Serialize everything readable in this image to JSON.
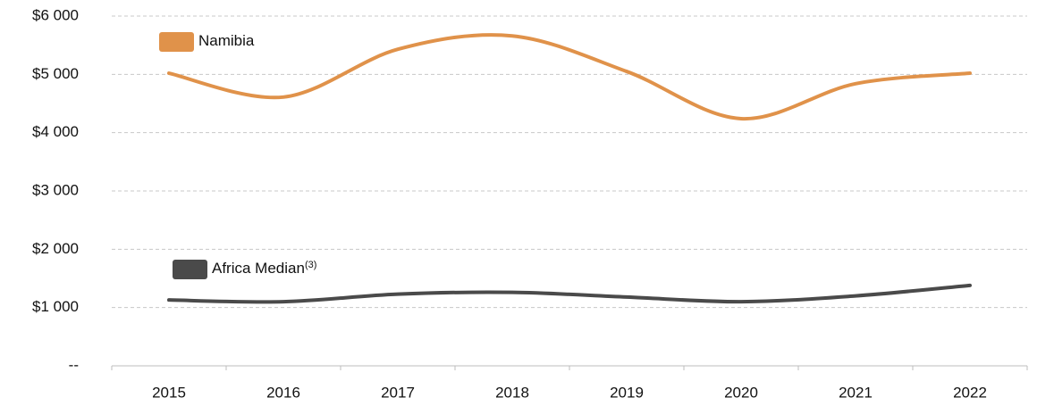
{
  "chart_data": {
    "type": "line",
    "categories": [
      "2015",
      "2016",
      "2017",
      "2018",
      "2019",
      "2020",
      "2021",
      "2022"
    ],
    "series": [
      {
        "name": "Namibia",
        "color": "#e0924a",
        "values": [
          5020,
          4610,
          5430,
          5660,
          5050,
          4240,
          4840,
          5020
        ]
      },
      {
        "name": "Africa Median",
        "name_note": "(3)",
        "color": "#4a4a4a",
        "values": [
          1130,
          1100,
          1230,
          1260,
          1180,
          1100,
          1200,
          1380
        ]
      }
    ],
    "ylim": [
      0,
      6000
    ],
    "yticks": [
      {
        "value": 0,
        "label": "--"
      },
      {
        "value": 1000,
        "label": "$1 000"
      },
      {
        "value": 2000,
        "label": "$2 000"
      },
      {
        "value": 3000,
        "label": "$3 000"
      },
      {
        "value": 4000,
        "label": "$4 000"
      },
      {
        "value": 5000,
        "label": "$5 000"
      },
      {
        "value": 6000,
        "label": "$6 000"
      }
    ],
    "grid": true,
    "smooth": true
  }
}
